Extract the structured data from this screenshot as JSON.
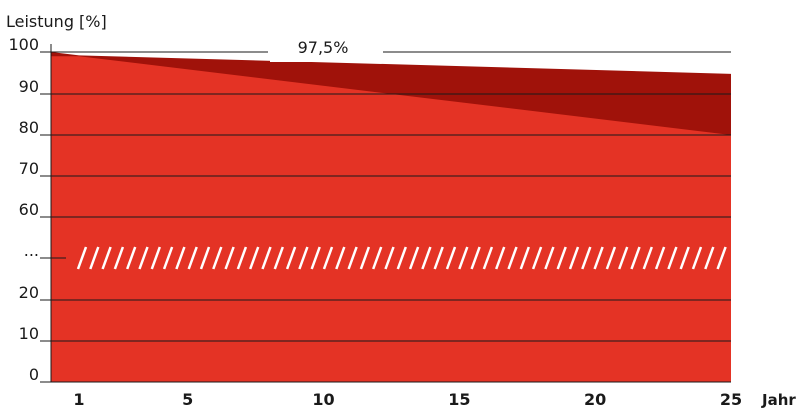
{
  "chart_data": {
    "type": "area",
    "ylabel": "Leistung [%]",
    "xlabel": "Jahr",
    "x_ticks": [
      "1",
      "5",
      "10",
      "15",
      "20",
      "25"
    ],
    "y_ticks": [
      {
        "value": 0,
        "label": "0"
      },
      {
        "value": 10,
        "label": "10"
      },
      {
        "value": 20,
        "label": "20"
      },
      {
        "value": 30,
        "label": "..."
      },
      {
        "value": 60,
        "label": "60"
      },
      {
        "value": 70,
        "label": "70"
      },
      {
        "value": 80,
        "label": "80"
      },
      {
        "value": 90,
        "label": "90"
      },
      {
        "value": 100,
        "label": "100"
      }
    ],
    "annotation": "97,5%",
    "axis_break": true,
    "series": [
      {
        "x": [
          0,
          1,
          25
        ],
        "values": [
          100,
          99.2,
          94.8
        ],
        "color": "#a0120a"
      },
      {
        "x": [
          0,
          1,
          25
        ],
        "values": [
          99,
          99,
          80
        ],
        "color": "#e43325"
      }
    ],
    "xlim": [
      0,
      25
    ],
    "grid": true,
    "gridline_color": "#1a1a1a",
    "hatch_color": "#ffffff"
  }
}
